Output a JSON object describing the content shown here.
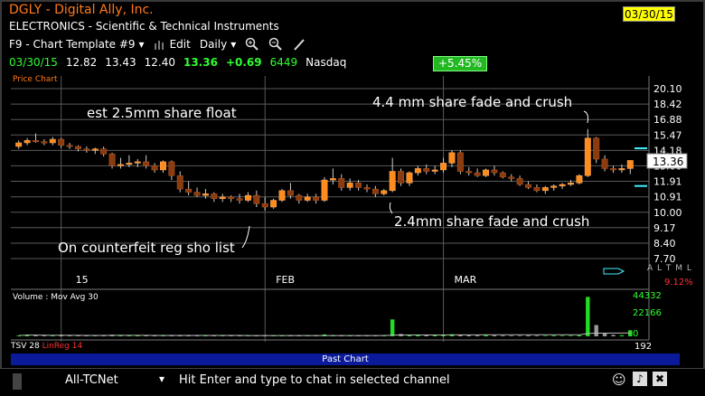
{
  "header": {
    "title": "DGLY - Digital Ally, Inc.",
    "sector": "ELECTRONICS - Scientific & Technical Instruments",
    "date_box": "03/30/15"
  },
  "toolbar": {
    "template": "F9 - Chart Template #9",
    "edit": "Edit",
    "period": "Daily"
  },
  "quote": {
    "date": "03/30/15",
    "open": "12.82",
    "high": "13.43",
    "low": "12.40",
    "close": "13.36",
    "change": "+0.69",
    "volume": "6449",
    "exchange": "Nasdaq",
    "pct_change": "+5.45%"
  },
  "chart_data": {
    "type": "candlestick",
    "label": "Price Chart",
    "y_ticks": [
      "20.10",
      "18.42",
      "16.88",
      "15.47",
      "14.18",
      "13.00",
      "11.91",
      "10.91",
      "10.00",
      "9.17",
      "8.40",
      "7.70"
    ],
    "x_ticks": [
      "15",
      "FEB",
      "MAR"
    ],
    "current_price": "13.36",
    "annotations": [
      "est 2.5mm share float",
      "4.4 mm share fade and crush",
      "2.4mm share fade and crush",
      "On counterfeit reg sho list"
    ],
    "candles": [
      [
        14.5,
        15.0,
        14.3,
        14.8
      ],
      [
        14.8,
        15.2,
        14.6,
        15.0
      ],
      [
        15.0,
        15.6,
        14.8,
        14.9
      ],
      [
        14.9,
        15.1,
        14.6,
        14.8
      ],
      [
        14.8,
        15.3,
        14.6,
        15.1
      ],
      [
        15.1,
        15.2,
        14.4,
        14.6
      ],
      [
        14.6,
        14.8,
        14.3,
        14.5
      ],
      [
        14.5,
        14.6,
        14.1,
        14.3
      ],
      [
        14.3,
        14.5,
        14.0,
        14.2
      ],
      [
        14.2,
        14.4,
        13.9,
        14.3
      ],
      [
        14.3,
        14.5,
        13.7,
        13.9
      ],
      [
        13.9,
        14.0,
        12.8,
        13.0
      ],
      [
        13.0,
        13.6,
        12.8,
        13.1
      ],
      [
        13.1,
        13.8,
        12.9,
        13.2
      ],
      [
        13.2,
        13.5,
        12.9,
        13.3
      ],
      [
        13.3,
        13.8,
        12.8,
        13.0
      ],
      [
        13.0,
        13.2,
        12.5,
        12.7
      ],
      [
        12.7,
        13.4,
        12.5,
        13.3
      ],
      [
        13.3,
        13.4,
        12.0,
        12.3
      ],
      [
        12.3,
        12.6,
        11.2,
        11.4
      ],
      [
        11.4,
        11.9,
        11.0,
        11.2
      ],
      [
        11.2,
        11.5,
        10.9,
        11.0
      ],
      [
        11.0,
        11.4,
        10.8,
        11.1
      ],
      [
        11.1,
        11.2,
        10.6,
        10.8
      ],
      [
        10.8,
        11.1,
        10.6,
        10.9
      ],
      [
        10.9,
        11.0,
        10.6,
        10.8
      ],
      [
        10.8,
        11.1,
        10.5,
        10.7
      ],
      [
        10.7,
        11.2,
        10.6,
        11.0
      ],
      [
        11.0,
        11.3,
        10.3,
        10.5
      ],
      [
        10.5,
        10.9,
        10.1,
        10.3
      ],
      [
        10.3,
        10.8,
        10.2,
        10.7
      ],
      [
        10.7,
        11.4,
        10.6,
        11.3
      ],
      [
        11.3,
        11.8,
        10.8,
        11.0
      ],
      [
        11.0,
        11.1,
        10.5,
        10.7
      ],
      [
        10.7,
        11.1,
        10.6,
        10.9
      ],
      [
        10.9,
        11.1,
        10.5,
        10.7
      ],
      [
        10.7,
        12.2,
        10.6,
        12.0
      ],
      [
        12.0,
        12.8,
        11.7,
        12.1
      ],
      [
        12.1,
        12.4,
        11.3,
        11.5
      ],
      [
        11.5,
        12.1,
        11.3,
        11.8
      ],
      [
        11.8,
        12.0,
        11.3,
        11.5
      ],
      [
        11.5,
        11.7,
        11.2,
        11.4
      ],
      [
        11.4,
        11.6,
        10.9,
        11.1
      ],
      [
        11.1,
        11.4,
        11.0,
        11.3
      ],
      [
        11.3,
        13.6,
        11.2,
        12.6
      ],
      [
        12.6,
        12.8,
        11.6,
        11.8
      ],
      [
        11.8,
        12.6,
        11.6,
        12.5
      ],
      [
        12.5,
        13.0,
        12.3,
        12.8
      ],
      [
        12.8,
        13.1,
        12.4,
        12.6
      ],
      [
        12.6,
        13.0,
        12.4,
        12.7
      ],
      [
        12.7,
        13.6,
        12.5,
        13.2
      ],
      [
        13.2,
        14.2,
        12.9,
        14.0
      ],
      [
        14.0,
        14.2,
        12.4,
        12.6
      ],
      [
        12.6,
        12.9,
        12.3,
        12.5
      ],
      [
        12.5,
        12.8,
        12.2,
        12.3
      ],
      [
        12.3,
        12.8,
        12.2,
        12.7
      ],
      [
        12.7,
        13.0,
        12.3,
        12.5
      ],
      [
        12.5,
        12.6,
        12.1,
        12.2
      ],
      [
        12.2,
        12.4,
        11.9,
        12.1
      ],
      [
        12.1,
        12.3,
        11.6,
        11.7
      ],
      [
        11.7,
        11.9,
        11.4,
        11.5
      ],
      [
        11.5,
        11.7,
        11.2,
        11.3
      ],
      [
        11.3,
        11.6,
        11.1,
        11.5
      ],
      [
        11.5,
        11.7,
        11.3,
        11.6
      ],
      [
        11.6,
        11.8,
        11.4,
        11.7
      ],
      [
        11.7,
        12.0,
        11.6,
        11.8
      ],
      [
        11.8,
        12.4,
        11.7,
        12.3
      ],
      [
        12.3,
        16.0,
        12.2,
        15.2
      ],
      [
        15.2,
        15.3,
        13.2,
        13.5
      ],
      [
        13.5,
        13.8,
        12.6,
        12.8
      ],
      [
        12.8,
        13.0,
        12.5,
        12.7
      ],
      [
        12.7,
        13.1,
        12.5,
        12.8
      ],
      [
        12.8,
        13.4,
        12.4,
        13.4
      ]
    ],
    "volume_label": "Volume : Mov Avg 30",
    "volume_ticks": [
      "44332",
      "22166",
      "0"
    ],
    "volume": [
      800,
      1800,
      1200,
      900,
      700,
      1500,
      600,
      800,
      900,
      700,
      1000,
      1700,
      1200,
      800,
      900,
      1000,
      700,
      800,
      1400,
      700,
      900,
      600,
      500,
      700,
      500,
      600,
      500,
      800,
      700,
      600,
      500,
      900,
      700,
      800,
      600,
      900,
      2000,
      1200,
      900,
      700,
      600,
      800,
      900,
      700,
      18000,
      2500,
      1500,
      1200,
      1000,
      1300,
      1600,
      2200,
      1800,
      1100,
      900,
      1200,
      1000,
      800,
      700,
      600,
      900,
      700,
      600,
      800,
      600,
      700,
      1000,
      42000,
      12000,
      3000,
      1500,
      1200,
      6449
    ]
  },
  "indicators": {
    "tsv": "TSV 28",
    "linreg": "LinReg 14",
    "right_marks": "A L T M L",
    "right_pct": "9.12%",
    "osc": "192"
  },
  "past_chart": "Past Chart",
  "chat": {
    "channel": "All-TCNet",
    "prompt": "Hit Enter and type to chat in selected channel"
  },
  "colors": {
    "up": "#ff8c1a",
    "down": "#8a3b0f",
    "text_orange": "#ff7a1a",
    "green": "#2fff2f",
    "date_box": "#ffff00"
  }
}
